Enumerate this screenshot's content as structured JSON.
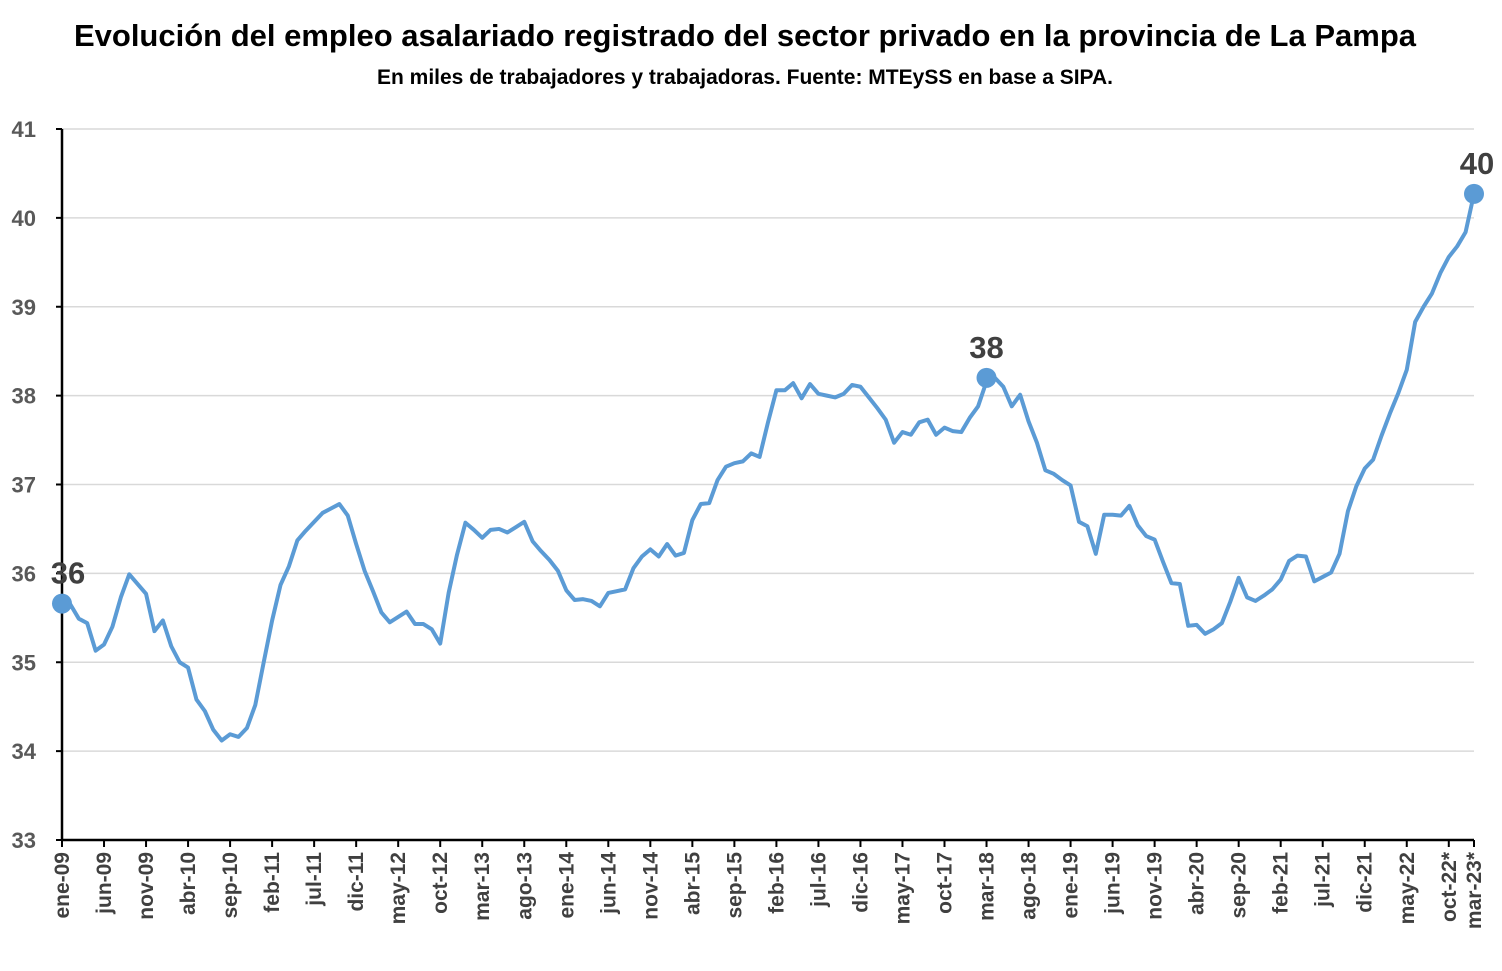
{
  "chart_data": {
    "type": "line",
    "title": "Evolución del empleo asalariado registrado del sector privado en la provincia de La Pampa",
    "subtitle": "En miles de trabajadores y trabajadoras. Fuente: MTEySS en base a SIPA.",
    "xlabel": "",
    "ylabel": "",
    "ylim": [
      33,
      41
    ],
    "yticks": [
      33,
      34,
      35,
      36,
      37,
      38,
      39,
      40,
      41
    ],
    "grid": true,
    "legend": "none",
    "line_color": "#5B9BD5",
    "x_tick_labels": [
      "ene-09",
      "jun-09",
      "nov-09",
      "abr-10",
      "sep-10",
      "feb-11",
      "jul-11",
      "dic-11",
      "may-12",
      "oct-12",
      "mar-13",
      "ago-13",
      "ene-14",
      "jun-14",
      "nov-14",
      "abr-15",
      "sep-15",
      "feb-16",
      "jul-16",
      "dic-16",
      "may-17",
      "oct-17",
      "mar-18",
      "ago-18",
      "ene-19",
      "jun-19",
      "nov-19",
      "abr-20",
      "sep-20",
      "feb-21",
      "jul-21",
      "dic-21",
      "may-22",
      "oct-22*",
      "mar-23*"
    ],
    "series": [
      {
        "values": [
          35.66,
          35.65,
          35.49,
          35.44,
          35.13,
          35.2,
          35.4,
          35.73,
          35.99,
          35.88,
          35.77,
          35.35,
          35.47,
          35.18,
          35.0,
          34.94,
          34.58,
          34.45,
          34.24,
          34.12,
          34.19,
          34.16,
          34.26,
          34.52,
          35.0,
          35.47,
          35.87,
          36.08,
          36.37,
          36.48,
          36.58,
          36.68,
          36.73,
          36.78,
          36.65,
          36.33,
          36.03,
          35.8,
          35.56,
          35.45,
          35.51,
          35.57,
          35.43,
          35.43,
          35.37,
          35.21,
          35.78,
          36.21,
          36.57,
          36.49,
          36.4,
          36.49,
          36.5,
          36.46,
          36.52,
          36.58,
          36.36,
          36.25,
          36.15,
          36.03,
          35.81,
          35.7,
          35.71,
          35.69,
          35.63,
          35.78,
          35.8,
          35.82,
          36.06,
          36.19,
          36.27,
          36.19,
          36.33,
          36.2,
          36.23,
          36.6,
          36.78,
          36.79,
          37.05,
          37.2,
          37.24,
          37.26,
          37.35,
          37.31,
          37.7,
          38.06,
          38.06,
          38.14,
          37.97,
          38.13,
          38.02,
          38.0,
          37.98,
          38.02,
          38.12,
          38.1,
          37.98,
          37.86,
          37.73,
          37.47,
          37.59,
          37.56,
          37.7,
          37.73,
          37.56,
          37.64,
          37.6,
          37.59,
          37.75,
          37.88,
          38.16,
          38.2,
          38.1,
          37.88,
          38.01,
          37.71,
          37.47,
          37.16,
          37.12,
          37.05,
          36.99,
          36.58,
          36.53,
          36.22,
          36.66,
          36.66,
          36.65,
          36.76,
          36.54,
          36.42,
          36.38,
          36.13,
          35.89,
          35.88,
          35.41,
          35.42,
          35.32,
          35.37,
          35.44,
          35.68,
          35.95,
          35.73,
          35.69,
          35.75,
          35.82,
          35.93,
          36.14,
          36.2,
          36.19,
          35.91,
          35.96,
          36.01,
          36.22,
          36.7,
          36.98,
          37.18,
          37.28,
          37.55,
          37.8,
          38.03,
          38.29,
          38.83,
          39.0,
          39.15,
          39.38,
          39.56,
          39.68,
          39.84,
          40.27
        ]
      }
    ],
    "data_labels": [
      {
        "index": 0,
        "value": 35.66,
        "text": "36"
      },
      {
        "index": 110,
        "value": 38.2,
        "text": "38"
      },
      {
        "index": 168,
        "value": 40.27,
        "text": "40"
      }
    ]
  }
}
